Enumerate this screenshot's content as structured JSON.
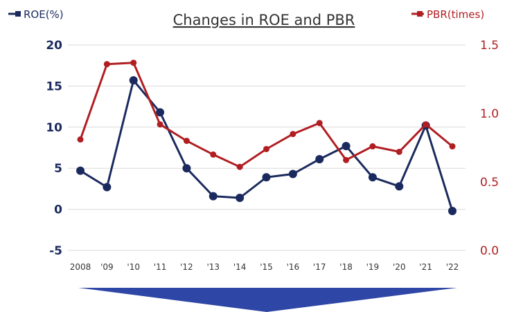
{
  "chart_data": {
    "type": "line",
    "title": "Changes in ROE and PBR",
    "categories": [
      "2008",
      "'09",
      "'10",
      "'11",
      "'12",
      "'13",
      "'14",
      "'15",
      "'16",
      "'17",
      "'18",
      "'19",
      "'20",
      "'21",
      "'22"
    ],
    "series": [
      {
        "name": "ROE(%)",
        "axis": "left",
        "color": "#1b2a5e",
        "values": [
          4.7,
          2.7,
          15.7,
          11.8,
          5.0,
          1.6,
          1.4,
          3.9,
          4.3,
          6.1,
          7.7,
          3.9,
          2.8,
          10.2,
          -0.2
        ]
      },
      {
        "name": "PBR(times)",
        "axis": "right",
        "color": "#b01e22",
        "values": [
          0.81,
          1.36,
          1.37,
          0.92,
          0.8,
          0.7,
          0.61,
          0.74,
          0.85,
          0.93,
          0.66,
          0.76,
          0.72,
          0.92,
          0.76
        ]
      }
    ],
    "ylim_left": [
      -5,
      20
    ],
    "yticks_left": [
      "20",
      "15",
      "10",
      "5",
      "0",
      "-5"
    ],
    "ylim_right": [
      0.0,
      1.5
    ],
    "yticks_right": [
      "1.5",
      "1.0",
      "0.5",
      "0.0"
    ],
    "grid": true,
    "legend": {
      "left": "ROE(%)",
      "right": "PBR(times)"
    },
    "colors": {
      "roe": "#1b2a5e",
      "pbr": "#b01e22",
      "grid": "#d9d9d9",
      "banner": "#2e46a6"
    }
  }
}
